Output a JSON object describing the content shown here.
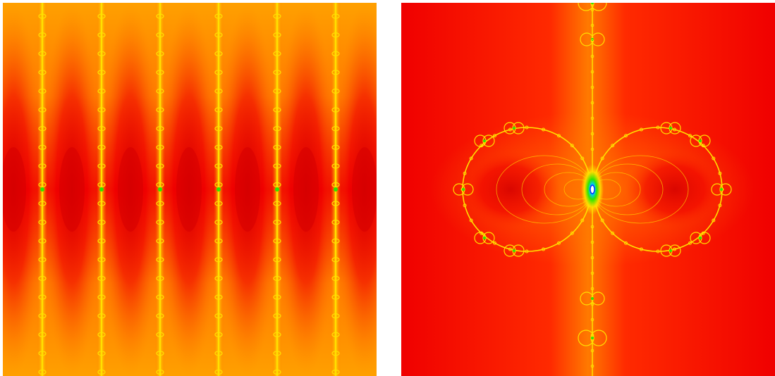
{
  "figure": {
    "panels": [
      {
        "id": "left",
        "description_name": "periodic-fractal-render"
      },
      {
        "id": "right",
        "description_name": "symmetric-fractal-render"
      }
    ],
    "palette": {
      "deep_red": "#d60000",
      "red": "#f00000",
      "red_orange": "#ff2a00",
      "orange": "#ff7a00",
      "light_orange": "#ffa000",
      "yellow": "#ffe000",
      "green": "#2ee600",
      "cyan": "#00c8ff",
      "blue": "#0033ff",
      "white": "#ffffff"
    }
  }
}
